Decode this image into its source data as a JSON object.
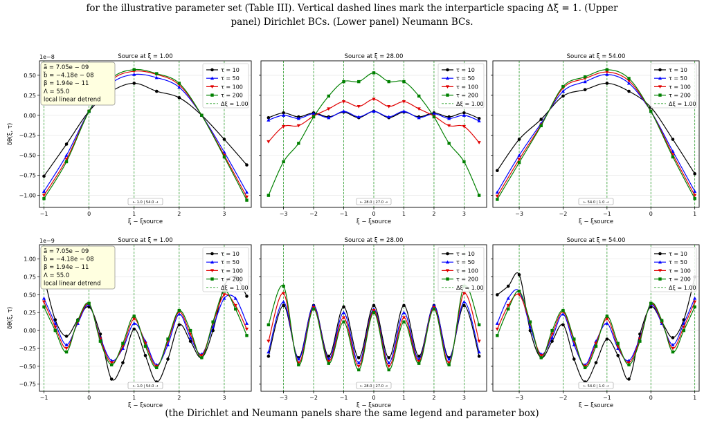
{
  "caption": {
    "line1_pre": "for the illustrative parameter set (Table ",
    "line1_ref": "III",
    "line1_post": "). Vertical dashed lines mark the interparticle spacing Δξ = 1. (Upper",
    "line2": "panel) Dirichlet BCs. (Lower panel) Neumann BCs.",
    "bottom": "(the Dirichlet and Neumann panels share the same legend and parameter box)"
  },
  "params_box": [
    "ã = 7.05e − 09",
    "b̃ = −4.18e − 08",
    "β = 1.94e − 11",
    "Λ = 55.0",
    "local linear detrend"
  ],
  "legend": [
    "τ = 10",
    "τ = 50",
    "τ = 100",
    "τ = 200",
    "Δξ = 1.00"
  ],
  "colors": {
    "tau10": "#000000",
    "tau50": "#0000ff",
    "tau100": "#e00000",
    "tau200": "#008000",
    "spacing": "#2ca02c"
  },
  "markers": {
    "tau10": "circle",
    "tau50": "triangle-up",
    "tau100": "triangle-down",
    "tau200": "square"
  },
  "chart_data": [
    {
      "type": "line",
      "title": "Source at ξ = 1.00",
      "xlabel": "ξ − ξsource",
      "ylabel": "δθ(ξ, τ)",
      "scale_label": "1e−8",
      "xlim": [
        -1.1,
        3.6
      ],
      "ylim": [
        -1.15,
        0.68
      ],
      "xticks": [
        -1,
        0,
        1,
        2,
        3
      ],
      "yticks": [
        -1.0,
        -0.75,
        -0.5,
        -0.25,
        0.0,
        0.25,
        0.5
      ],
      "ytick_labels": [
        "−1.00",
        "−0.75",
        "−0.50",
        "−0.25",
        "0.00",
        "0.25",
        "0.50"
      ],
      "spacing_lines": [
        -1,
        0,
        1,
        2,
        3
      ],
      "distance_label": "← 1.0 | 54.0 →",
      "show_param_box": true,
      "x": [
        -1,
        -0.5,
        0,
        0.5,
        1,
        1.5,
        2,
        2.5,
        3,
        3.5
      ],
      "series": [
        {
          "name": "τ = 10",
          "values": [
            -0.76,
            -0.36,
            0.05,
            0.3,
            0.4,
            0.3,
            0.22,
            0.0,
            -0.3,
            -0.62
          ]
        },
        {
          "name": "τ = 50",
          "values": [
            -0.95,
            -0.5,
            0.05,
            0.4,
            0.51,
            0.47,
            0.35,
            0.0,
            -0.46,
            -0.96
          ]
        },
        {
          "name": "τ = 100",
          "values": [
            -1.0,
            -0.55,
            0.05,
            0.44,
            0.55,
            0.51,
            0.38,
            0.0,
            -0.5,
            -1.02
          ]
        },
        {
          "name": "τ = 200",
          "values": [
            -1.04,
            -0.58,
            0.05,
            0.46,
            0.57,
            0.52,
            0.4,
            0.0,
            -0.52,
            -1.06
          ]
        }
      ]
    },
    {
      "type": "line",
      "title": "Source at ξ = 28.00",
      "xlabel": "ξ − ξsource",
      "ylabel": "",
      "scale_label": "",
      "xlim": [
        -3.75,
        3.75
      ],
      "ylim": [
        -1.15,
        0.68
      ],
      "xticks": [
        -3,
        -2,
        -1,
        0,
        1,
        2,
        3
      ],
      "yticks": [
        -1.0,
        -0.75,
        -0.5,
        -0.25,
        0.0,
        0.25,
        0.5
      ],
      "ytick_labels": [
        "",
        "",
        "",
        "",
        "",
        "",
        ""
      ],
      "spacing_lines": [
        -3,
        -2,
        -1,
        0,
        1,
        2,
        3
      ],
      "distance_label": "← 28.0 | 27.0 →",
      "show_param_box": false,
      "x": [
        -3.5,
        -3,
        -2.5,
        -2,
        -1.5,
        -1,
        -0.5,
        0,
        0.5,
        1,
        1.5,
        2,
        2.5,
        3,
        3.5
      ],
      "series": [
        {
          "name": "τ = 10",
          "values": [
            -0.03,
            0.03,
            -0.02,
            0.03,
            -0.02,
            0.04,
            -0.03,
            0.05,
            -0.03,
            0.04,
            -0.02,
            0.03,
            -0.02,
            0.03,
            -0.04
          ]
        },
        {
          "name": "τ = 50",
          "values": [
            -0.06,
            0.0,
            -0.04,
            0.02,
            -0.03,
            0.05,
            -0.02,
            0.05,
            -0.02,
            0.05,
            -0.03,
            0.02,
            -0.04,
            0.0,
            -0.07
          ]
        },
        {
          "name": "τ = 100",
          "values": [
            -0.33,
            -0.14,
            -0.13,
            -0.01,
            0.08,
            0.17,
            0.11,
            0.2,
            0.11,
            0.17,
            0.08,
            -0.01,
            -0.13,
            -0.14,
            -0.34
          ]
        },
        {
          "name": "τ = 200",
          "values": [
            -1.0,
            -0.58,
            -0.35,
            -0.02,
            0.24,
            0.42,
            0.42,
            0.53,
            0.42,
            0.42,
            0.24,
            -0.02,
            -0.35,
            -0.58,
            -1.0
          ]
        }
      ]
    },
    {
      "type": "line",
      "title": "Source at ξ = 54.00",
      "xlabel": "ξ − ξsource",
      "ylabel": "",
      "scale_label": "",
      "xlim": [
        -3.6,
        1.1
      ],
      "ylim": [
        -1.15,
        0.68
      ],
      "xticks": [
        -3,
        -2,
        -1,
        0,
        1
      ],
      "yticks": [
        -1.0,
        -0.75,
        -0.5,
        -0.25,
        0.0,
        0.25,
        0.5
      ],
      "ytick_labels": [
        "",
        "",
        "",
        "",
        "",
        "",
        ""
      ],
      "spacing_lines": [
        -3,
        -2,
        -1,
        0,
        1
      ],
      "distance_label": "← 54.0 | 1.0 →",
      "show_param_box": false,
      "x": [
        -3.5,
        -3,
        -2.5,
        -2,
        -1.5,
        -1,
        -0.5,
        0,
        0.5,
        1
      ],
      "series": [
        {
          "name": "τ = 10",
          "values": [
            -0.69,
            -0.3,
            -0.05,
            0.24,
            0.32,
            0.4,
            0.3,
            0.1,
            -0.3,
            -0.73
          ]
        },
        {
          "name": "τ = 50",
          "values": [
            -0.96,
            -0.5,
            -0.1,
            0.3,
            0.42,
            0.51,
            0.4,
            0.05,
            -0.45,
            -0.95
          ]
        },
        {
          "name": "τ = 100",
          "values": [
            -1.01,
            -0.55,
            -0.12,
            0.34,
            0.46,
            0.54,
            0.43,
            0.05,
            -0.49,
            -1.0
          ]
        },
        {
          "name": "τ = 200",
          "values": [
            -1.05,
            -0.59,
            -0.13,
            0.36,
            0.48,
            0.57,
            0.46,
            0.05,
            -0.52,
            -1.04
          ]
        }
      ]
    },
    {
      "type": "line",
      "title": "Source at ξ = 1.00",
      "xlabel": "ξ − ξsource",
      "ylabel": "δθ(ξ, τ)",
      "scale_label": "1e−9",
      "xlim": [
        -1.1,
        3.6
      ],
      "ylim": [
        -0.85,
        1.2
      ],
      "xticks": [
        -1,
        0,
        1,
        2,
        3
      ],
      "yticks": [
        -0.75,
        -0.5,
        -0.25,
        0.0,
        0.25,
        0.5,
        0.75,
        1.0
      ],
      "ytick_labels": [
        "−0.75",
        "−0.50",
        "−0.25",
        "0.00",
        "0.25",
        "0.50",
        "0.75",
        "1.00"
      ],
      "spacing_lines": [
        -1,
        0,
        1,
        2,
        3
      ],
      "distance_label": "← 1.0 | 54.0 →",
      "show_param_box": true,
      "x": [
        -1,
        -0.75,
        -0.5,
        -0.25,
        0,
        0.25,
        0.5,
        0.75,
        1,
        1.25,
        1.5,
        1.75,
        2,
        2.25,
        2.5,
        2.75,
        3,
        3.25,
        3.5
      ],
      "series": [
        {
          "name": "τ = 10",
          "values": [
            0.75,
            0.15,
            -0.08,
            0.15,
            0.33,
            -0.05,
            -0.68,
            -0.45,
            0.02,
            -0.35,
            -0.72,
            -0.4,
            0.08,
            -0.15,
            -0.38,
            0.0,
            0.62,
            0.75,
            0.48
          ]
        },
        {
          "name": "τ = 50",
          "values": [
            0.45,
            0.1,
            -0.2,
            0.1,
            0.36,
            -0.1,
            -0.42,
            -0.25,
            0.1,
            -0.15,
            -0.48,
            -0.2,
            0.23,
            -0.1,
            -0.33,
            0.05,
            0.45,
            0.45,
            0.1
          ]
        },
        {
          "name": "τ = 100",
          "values": [
            0.4,
            0.05,
            -0.25,
            0.12,
            0.37,
            -0.12,
            -0.45,
            -0.22,
            0.16,
            -0.18,
            -0.5,
            -0.15,
            0.26,
            -0.05,
            -0.35,
            0.1,
            0.5,
            0.35,
            0.02
          ]
        },
        {
          "name": "τ = 200",
          "values": [
            0.33,
            0.0,
            -0.3,
            0.14,
            0.38,
            -0.15,
            -0.48,
            -0.18,
            0.2,
            -0.22,
            -0.52,
            -0.12,
            0.28,
            0.0,
            -0.38,
            0.12,
            0.55,
            0.3,
            -0.07
          ]
        }
      ]
    },
    {
      "type": "line",
      "title": "Source at ξ = 28.00",
      "xlabel": "ξ − ξsource",
      "ylabel": "",
      "scale_label": "",
      "xlim": [
        -3.75,
        3.75
      ],
      "ylim": [
        -0.85,
        1.2
      ],
      "xticks": [
        -3,
        -2,
        -1,
        0,
        1,
        2,
        3
      ],
      "yticks": [
        -0.75,
        -0.5,
        -0.25,
        0.0,
        0.25,
        0.5,
        0.75,
        1.0
      ],
      "ytick_labels": [
        "",
        "",
        "",
        "",
        "",
        "",
        "",
        ""
      ],
      "spacing_lines": [
        -3,
        -2,
        -1,
        0,
        1,
        2,
        3
      ],
      "distance_label": "← 28.0 | 27.0 →",
      "show_param_box": false,
      "x": [
        -3.5,
        -3,
        -2.5,
        -2,
        -1.5,
        -1,
        -0.5,
        0,
        0.5,
        1,
        1.5,
        2,
        2.5,
        3,
        3.5
      ],
      "series": [
        {
          "name": "τ = 10",
          "values": [
            -0.36,
            0.35,
            -0.38,
            0.35,
            -0.36,
            0.33,
            -0.38,
            0.35,
            -0.38,
            0.35,
            -0.36,
            0.35,
            -0.38,
            0.35,
            -0.36
          ]
        },
        {
          "name": "τ = 50",
          "values": [
            -0.3,
            0.4,
            -0.4,
            0.35,
            -0.4,
            0.25,
            -0.45,
            0.3,
            -0.45,
            0.25,
            -0.4,
            0.35,
            -0.4,
            0.4,
            -0.3
          ]
        },
        {
          "name": "τ = 100",
          "values": [
            -0.15,
            0.52,
            -0.45,
            0.32,
            -0.43,
            0.18,
            -0.5,
            0.28,
            -0.5,
            0.18,
            -0.43,
            0.32,
            -0.45,
            0.52,
            -0.15
          ]
        },
        {
          "name": "τ = 200",
          "values": [
            0.08,
            0.62,
            -0.48,
            0.3,
            -0.46,
            0.12,
            -0.55,
            0.25,
            -0.55,
            0.12,
            -0.46,
            0.3,
            -0.48,
            0.62,
            0.08
          ]
        }
      ]
    },
    {
      "type": "line",
      "title": "Source at ξ = 54.00",
      "xlabel": "ξ − ξsource",
      "ylabel": "",
      "scale_label": "",
      "xlim": [
        -3.6,
        1.1
      ],
      "ylim": [
        -0.85,
        1.2
      ],
      "xticks": [
        -3,
        -2,
        -1,
        0,
        1
      ],
      "yticks": [
        -0.75,
        -0.5,
        -0.25,
        0.0,
        0.25,
        0.5,
        0.75,
        1.0
      ],
      "ytick_labels": [
        "",
        "",
        "",
        "",
        "",
        "",
        "",
        ""
      ],
      "spacing_lines": [
        -3,
        -2,
        -1,
        0,
        1
      ],
      "distance_label": "← 54.0 | 1.0 →",
      "show_param_box": false,
      "x": [
        -3.5,
        -3.25,
        -3,
        -2.75,
        -2.5,
        -2.25,
        -2,
        -1.75,
        -1.5,
        -1.25,
        -1,
        -0.75,
        -0.5,
        -0.25,
        0,
        0.25,
        0.5,
        0.75,
        1
      ],
      "series": [
        {
          "name": "τ = 10",
          "values": [
            0.5,
            0.62,
            0.78,
            0.0,
            -0.38,
            -0.15,
            0.08,
            -0.4,
            -0.72,
            -0.45,
            -0.12,
            -0.35,
            -0.68,
            -0.05,
            0.33,
            0.12,
            -0.1,
            0.15,
            0.75
          ]
        },
        {
          "name": "τ = 50",
          "values": [
            0.1,
            0.45,
            0.55,
            0.05,
            -0.33,
            -0.1,
            0.23,
            -0.2,
            -0.48,
            -0.15,
            0.1,
            -0.25,
            -0.42,
            -0.1,
            0.36,
            0.1,
            -0.2,
            0.1,
            0.45
          ]
        },
        {
          "name": "τ = 100",
          "values": [
            0.02,
            0.35,
            0.5,
            0.1,
            -0.35,
            -0.05,
            0.26,
            -0.15,
            -0.5,
            -0.18,
            0.16,
            -0.22,
            -0.45,
            -0.12,
            0.37,
            0.12,
            -0.25,
            0.05,
            0.4
          ]
        },
        {
          "name": "τ = 200",
          "values": [
            -0.07,
            0.3,
            0.55,
            0.12,
            -0.38,
            0.0,
            0.28,
            -0.12,
            -0.52,
            -0.22,
            0.2,
            -0.18,
            -0.48,
            -0.15,
            0.38,
            0.14,
            -0.3,
            0.0,
            0.33
          ]
        }
      ]
    }
  ]
}
